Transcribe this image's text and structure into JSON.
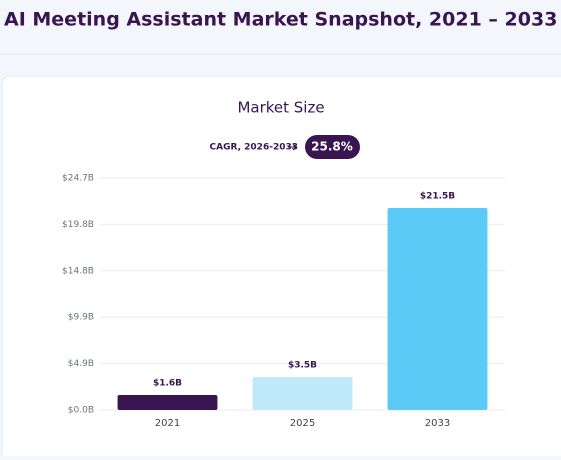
{
  "page_title": "AI Meeting Assistant Market Snapshot, 2021 – 2033",
  "chart_data": {
    "type": "bar",
    "title": "Market Size",
    "annotation": {
      "label": "CAGR, 2026-2033",
      "value": "25.8%"
    },
    "categories": [
      "2021",
      "2025",
      "2033"
    ],
    "values": [
      1.6,
      3.5,
      21.5
    ],
    "value_labels": [
      "$1.6B",
      "$3.5B",
      "$21.5B"
    ],
    "colors": [
      "#3a1650",
      "#bfe9f8",
      "#5ccaf6"
    ],
    "ylim": [
      0,
      24.7
    ],
    "yticks": [
      {
        "value": 0,
        "label": "$0.0B"
      },
      {
        "value": 4.94,
        "label": "$4.9B"
      },
      {
        "value": 9.88,
        "label": "$9.9B"
      },
      {
        "value": 14.82,
        "label": "$14.8B"
      },
      {
        "value": 19.76,
        "label": "$19.8B"
      },
      {
        "value": 24.7,
        "label": "$24.7B"
      }
    ],
    "grid": true
  }
}
